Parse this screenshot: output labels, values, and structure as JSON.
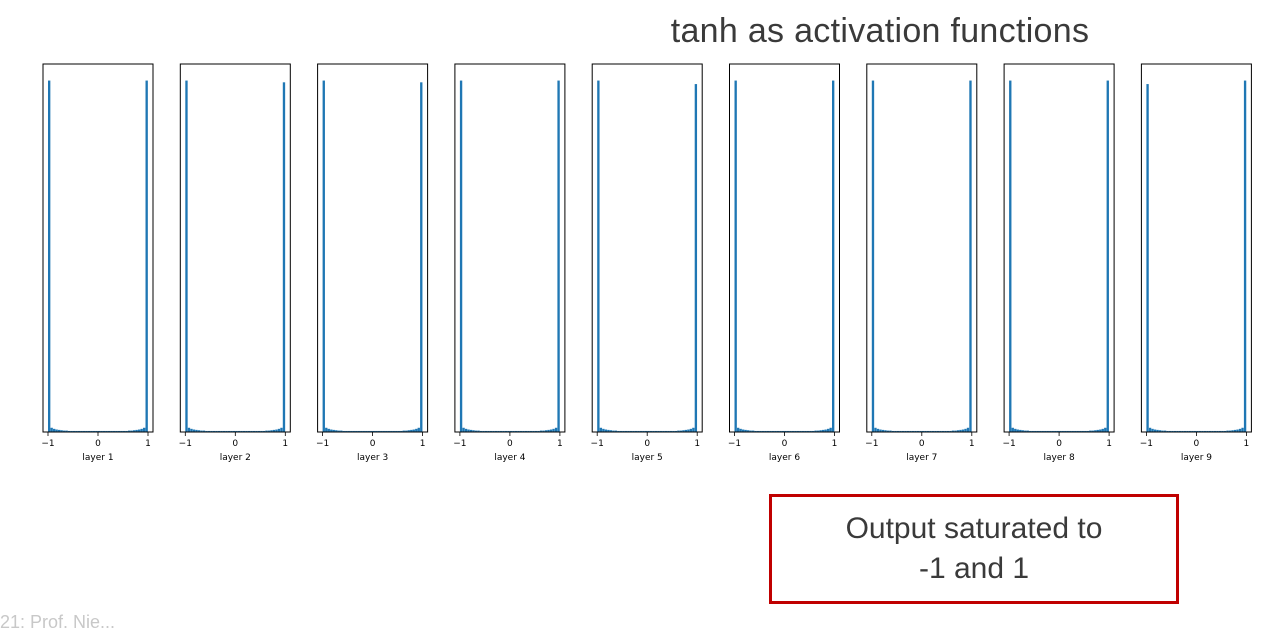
{
  "slide": {
    "title": "tanh as activation functions",
    "callout_line1": "Output saturated to",
    "callout_line2": "-1 and 1",
    "footer": "21: Prof. Nie..."
  },
  "colors": {
    "bar": "#1f77b4",
    "callout_border": "#c00000"
  },
  "chart_data": {
    "type": "bar",
    "title": "tanh as activation functions",
    "xlim": [
      -1,
      1
    ],
    "xticks": [
      -1,
      0,
      1
    ],
    "xtick_labels": [
      "−1",
      "0",
      "1"
    ],
    "yaxis_visible": false,
    "panels": [
      {
        "name": "layer 1",
        "left_peak": 1.0,
        "right_peak": 1.0
      },
      {
        "name": "layer 2",
        "left_peak": 1.0,
        "right_peak": 0.995
      },
      {
        "name": "layer 3",
        "left_peak": 1.0,
        "right_peak": 0.995
      },
      {
        "name": "layer 4",
        "left_peak": 1.0,
        "right_peak": 1.0
      },
      {
        "name": "layer 5",
        "left_peak": 1.0,
        "right_peak": 0.99
      },
      {
        "name": "layer 6",
        "left_peak": 1.0,
        "right_peak": 1.0
      },
      {
        "name": "layer 7",
        "left_peak": 1.0,
        "right_peak": 1.0
      },
      {
        "name": "layer 8",
        "left_peak": 1.0,
        "right_peak": 1.0
      },
      {
        "name": "layer 9",
        "left_peak": 0.99,
        "right_peak": 1.0
      }
    ],
    "bins": 40,
    "interior_profile": [
      0.018,
      0.012,
      0.009,
      0.007,
      0.006,
      0.005,
      0.004,
      0.004,
      0.003,
      0.003,
      0.003,
      0.003,
      0.003,
      0.003,
      0.003,
      0.003,
      0.003,
      0.003,
      0.003,
      0.003,
      0.003,
      0.003,
      0.003,
      0.003,
      0.003,
      0.003,
      0.003,
      0.003,
      0.003,
      0.003,
      0.003,
      0.003,
      0.004,
      0.004,
      0.005,
      0.006,
      0.007,
      0.009,
      0.012,
      0.018
    ]
  }
}
